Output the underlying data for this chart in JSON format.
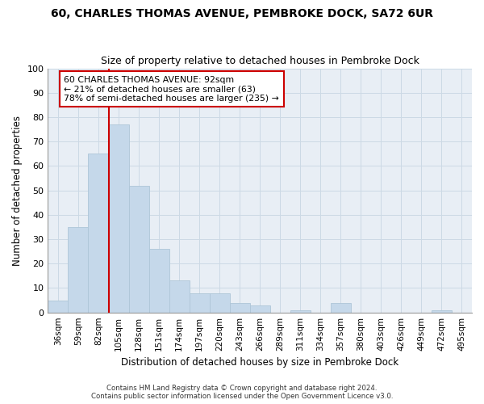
{
  "title1": "60, CHARLES THOMAS AVENUE, PEMBROKE DOCK, SA72 6UR",
  "title2": "Size of property relative to detached houses in Pembroke Dock",
  "xlabel": "Distribution of detached houses by size in Pembroke Dock",
  "ylabel": "Number of detached properties",
  "categories": [
    "36sqm",
    "59sqm",
    "82sqm",
    "105sqm",
    "128sqm",
    "151sqm",
    "174sqm",
    "197sqm",
    "220sqm",
    "243sqm",
    "266sqm",
    "289sqm",
    "311sqm",
    "334sqm",
    "357sqm",
    "380sqm",
    "403sqm",
    "426sqm",
    "449sqm",
    "472sqm",
    "495sqm"
  ],
  "values": [
    5,
    35,
    65,
    77,
    52,
    26,
    13,
    8,
    8,
    4,
    3,
    0,
    1,
    0,
    4,
    0,
    0,
    0,
    0,
    1,
    0
  ],
  "bar_color": "#c5d8ea",
  "bar_edge_color": "#aec6d8",
  "vline_color": "#cc0000",
  "annotation_line1": "60 CHARLES THOMAS AVENUE: 92sqm",
  "annotation_line2": "← 21% of detached houses are smaller (63)",
  "annotation_line3": "78% of semi-detached houses are larger (235) →",
  "annotation_box_color": "#ffffff",
  "annotation_box_edge": "#cc0000",
  "grid_color": "#ccd9e5",
  "bg_color": "#e8eef5",
  "fig_bg": "#ffffff",
  "ylim": [
    0,
    100
  ],
  "title1_fontsize": 10,
  "title2_fontsize": 9,
  "footer1": "Contains HM Land Registry data © Crown copyright and database right 2024.",
  "footer2": "Contains public sector information licensed under the Open Government Licence v3.0."
}
